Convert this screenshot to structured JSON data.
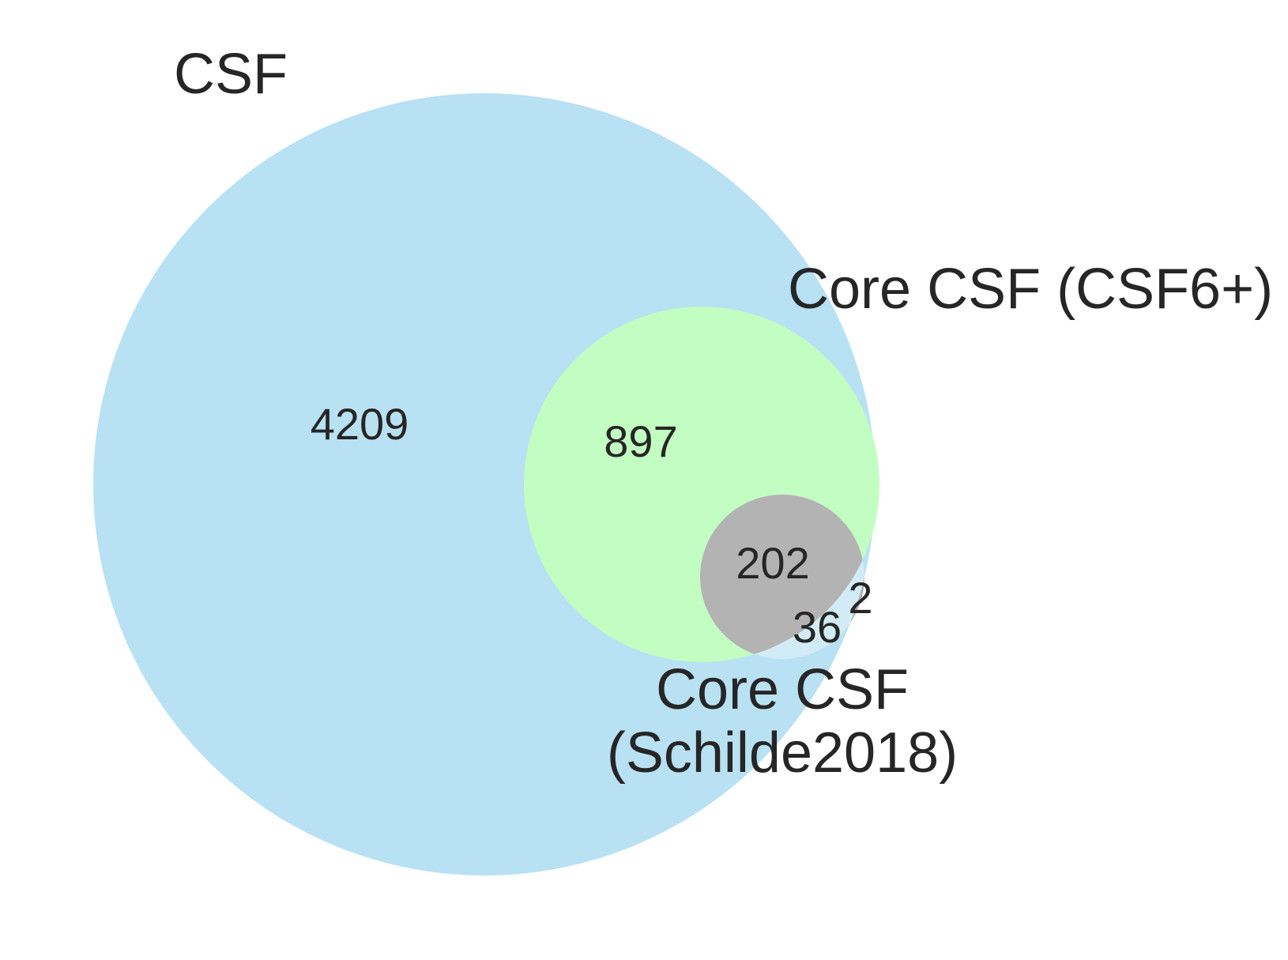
{
  "sets": [
    {
      "key": "csf",
      "label": "CSF",
      "color": "#b8e1f3"
    },
    {
      "key": "core_csf6",
      "label": "Core CSF (CSF6+)",
      "color": "#c2fdc2"
    },
    {
      "key": "schilde",
      "label_lines": [
        "Core CSF",
        "(Schilde2018)"
      ],
      "color": "#b3b3b3"
    }
  ],
  "regions": {
    "csf_only": "4209",
    "csf_and_core_csf6": "897",
    "all_three": "202",
    "csf_and_schilde": "36",
    "schilde_only": "2"
  },
  "colors": {
    "csf_schilde_overlap": "#d2ecf7",
    "text": "#262626",
    "background": "#ffffff"
  }
}
